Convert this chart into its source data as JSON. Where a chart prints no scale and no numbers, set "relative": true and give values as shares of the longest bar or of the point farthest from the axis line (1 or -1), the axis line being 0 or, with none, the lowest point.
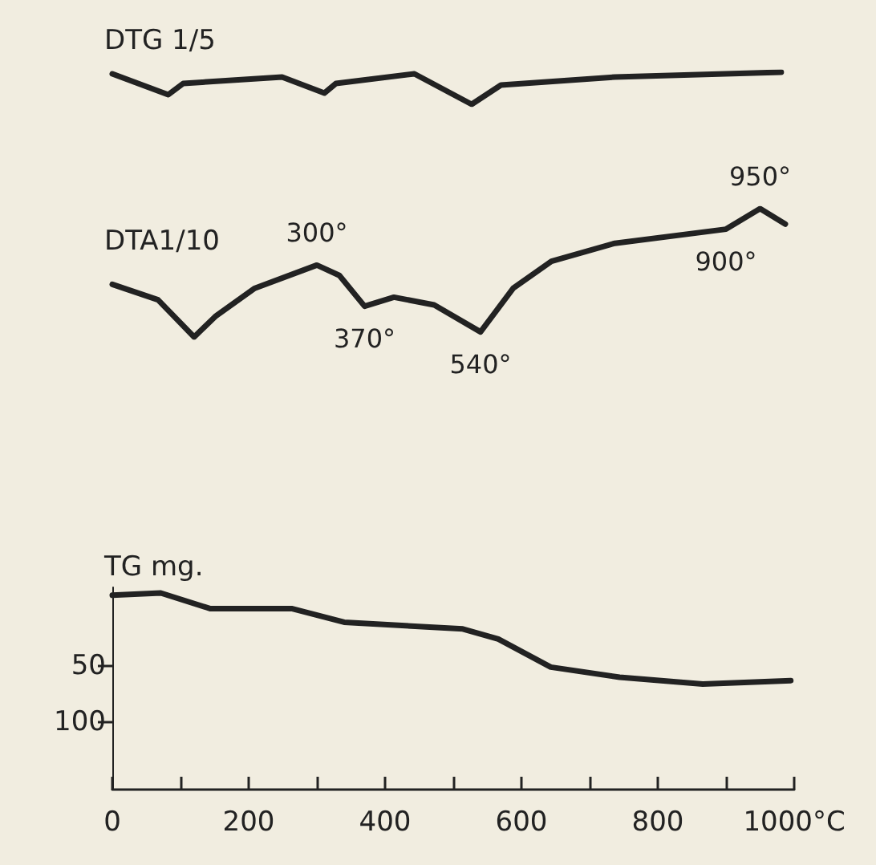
{
  "chart_data": [
    {
      "type": "line",
      "title": "DTG 1/5",
      "relative": true,
      "tick_labels": false,
      "xlim": [
        0,
        1000
      ],
      "color": "#222222",
      "x": [
        0,
        82,
        104,
        249,
        311,
        328,
        443,
        527,
        570,
        737,
        981
      ],
      "values": [
        0.95,
        0.3,
        0.65,
        0.85,
        0.35,
        0.65,
        0.95,
        0,
        0.6,
        0.85,
        1
      ]
    },
    {
      "type": "line",
      "title": "DTA1/10",
      "relative": true,
      "tick_labels": false,
      "xlim": [
        0,
        1000
      ],
      "color": "#222222",
      "x": [
        0,
        67,
        120,
        151,
        209,
        300,
        333,
        370,
        413,
        472,
        540,
        588,
        644,
        737,
        900,
        950,
        987
      ],
      "values": [
        0.41,
        0.29,
        0,
        0.16,
        0.38,
        0.56,
        0.48,
        0.24,
        0.31,
        0.25,
        0.04,
        0.38,
        0.59,
        0.73,
        0.84,
        1,
        0.88
      ],
      "annotations": [
        {
          "text": "300°",
          "x": 300,
          "y": 0.56
        },
        {
          "text": "370°",
          "x": 370,
          "y": 0.24
        },
        {
          "text": "540°",
          "x": 540,
          "y": 0.04
        },
        {
          "text": "900°",
          "x": 900,
          "y": 0.84
        },
        {
          "text": "950°",
          "x": 950,
          "y": 1
        }
      ]
    },
    {
      "type": "line",
      "title": "TG mg.",
      "xlim": [
        0,
        1000
      ],
      "ylim": [
        160,
        -20
      ],
      "yticks": [
        50,
        100
      ],
      "color": "#222222",
      "xticks": [
        0,
        {
          "value": 100,
          "label": null
        },
        200,
        {
          "value": 300,
          "label": null
        },
        400,
        {
          "value": 500,
          "label": null
        },
        600,
        {
          "value": 700,
          "label": null
        },
        800,
        {
          "value": 900,
          "label": null
        },
        {
          "value": 1000,
          "label": "1000°C"
        }
      ],
      "x": [
        0,
        71,
        144,
        264,
        340,
        514,
        566,
        643,
        744,
        866,
        995
      ],
      "values": [
        -13,
        -15,
        -1,
        -1,
        11,
        17,
        26,
        51,
        60,
        66,
        63
      ]
    }
  ]
}
